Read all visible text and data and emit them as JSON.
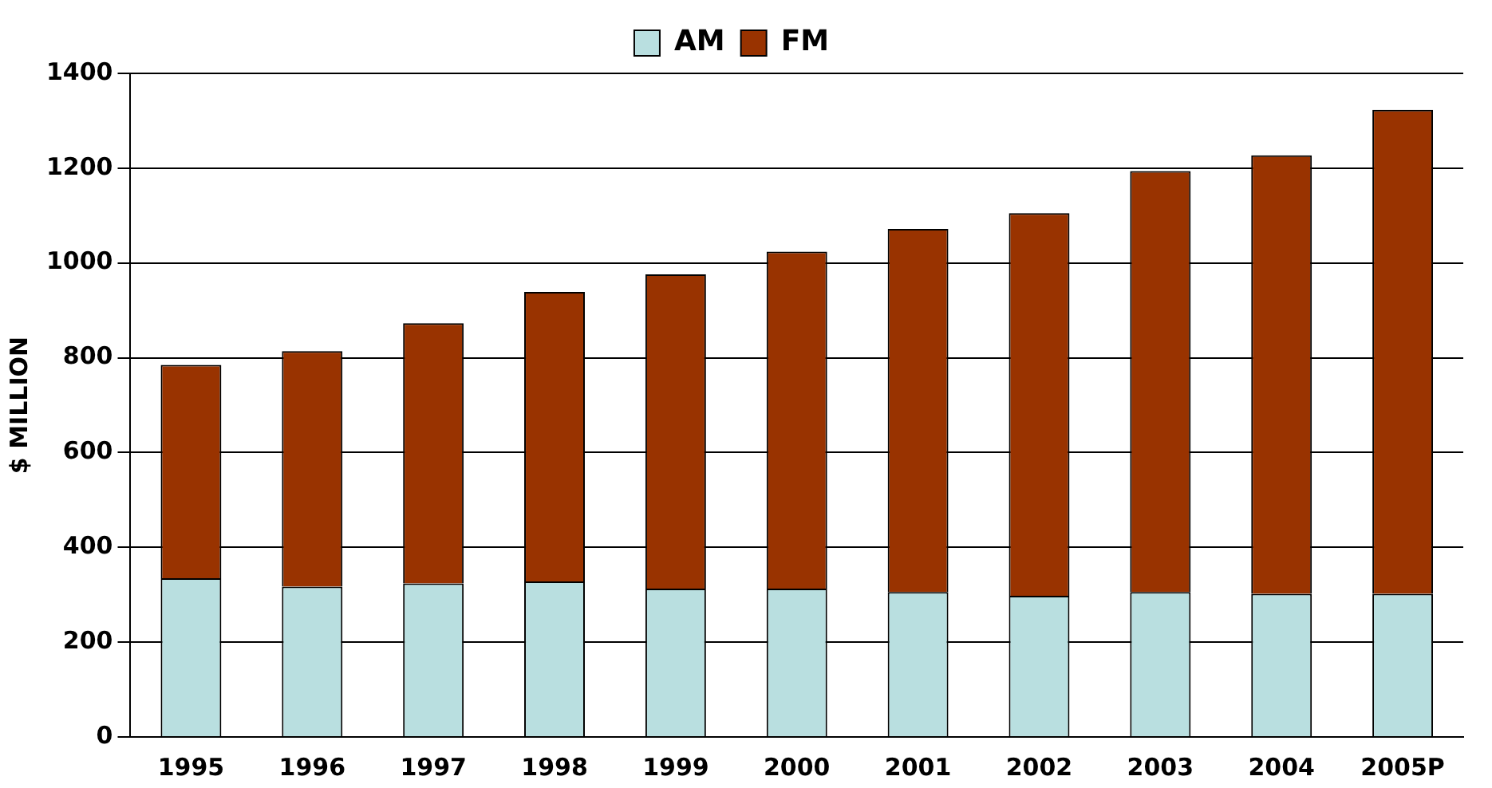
{
  "chart_data": {
    "type": "bar",
    "stacked": true,
    "ylabel": "$ MILLION",
    "categories": [
      "1995",
      "1996",
      "1997",
      "1998",
      "1999",
      "2000",
      "2001",
      "2002",
      "2003",
      "2004",
      "2005P"
    ],
    "series": [
      {
        "name": "AM",
        "color": "#b9dfe0",
        "values": [
          335,
          317,
          324,
          328,
          313,
          313,
          306,
          298,
          306,
          302,
          302
        ]
      },
      {
        "name": "FM",
        "color": "#993300",
        "values": [
          450,
          497,
          549,
          611,
          663,
          711,
          766,
          807,
          888,
          925,
          1021
        ]
      }
    ],
    "ylim": [
      0,
      1400
    ],
    "yticks": [
      0,
      200,
      400,
      600,
      800,
      1000,
      1200,
      1400
    ],
    "grid": "y",
    "legend": "top"
  }
}
